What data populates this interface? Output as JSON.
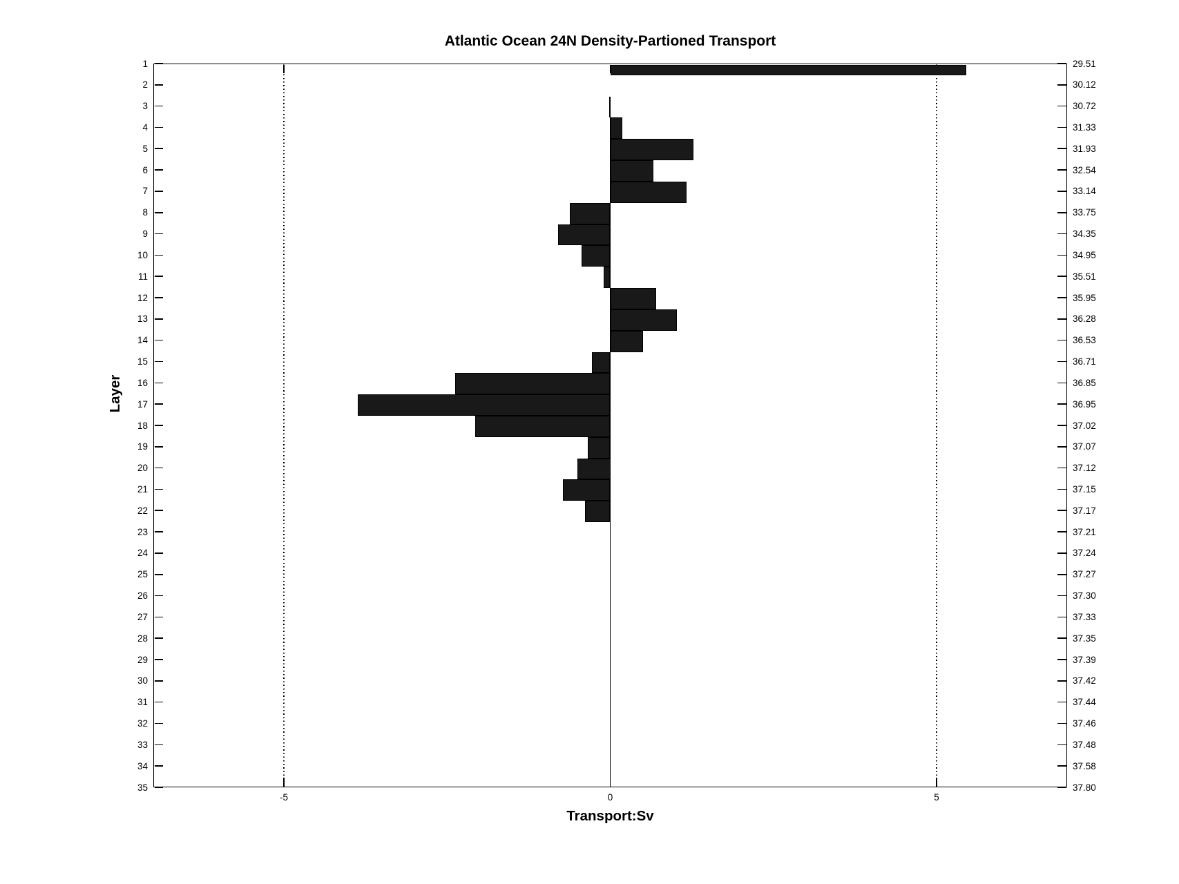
{
  "chart_data": {
    "type": "bar",
    "orientation": "horizontal",
    "title": "Atlantic Ocean 24N Density-Partioned Transport",
    "xlabel": "Transport:Sv",
    "ylabel": "Layer",
    "xlim": [
      -7,
      7
    ],
    "ylim": [
      1,
      35
    ],
    "grid": "dotted-vertical-at-xticks-excluding-zero",
    "bar_color": "#191919",
    "xticks": [
      {
        "value": -5,
        "label": "-5"
      },
      {
        "value": 0,
        "label": "0"
      },
      {
        "value": 5,
        "label": "5"
      }
    ],
    "categories": [
      1,
      2,
      3,
      4,
      5,
      6,
      7,
      8,
      9,
      10,
      11,
      12,
      13,
      14,
      15,
      16,
      17,
      18,
      19,
      20,
      21,
      22,
      23,
      24,
      25,
      26,
      27,
      28,
      29,
      30,
      31,
      32,
      33,
      34,
      35
    ],
    "series": [
      {
        "name": "Transport (Sv)",
        "values": [
          5.46,
          0,
          -0.02,
          0.19,
          1.28,
          0.66,
          1.17,
          -0.62,
          -0.8,
          -0.44,
          -0.1,
          0.7,
          1.02,
          0.5,
          -0.28,
          -2.38,
          -3.87,
          -2.07,
          -0.34,
          -0.5,
          -0.73,
          -0.39,
          0,
          0,
          0,
          0,
          0,
          0,
          0,
          0,
          0,
          0,
          0,
          0,
          0
        ]
      }
    ],
    "right_axis_labels": [
      "29.51",
      "30.12",
      "30.72",
      "31.33",
      "31.93",
      "32.54",
      "33.14",
      "33.75",
      "34.35",
      "34.95",
      "35.51",
      "35.95",
      "36.28",
      "36.53",
      "36.71",
      "36.85",
      "36.95",
      "37.02",
      "37.07",
      "37.12",
      "37.15",
      "37.17",
      "37.21",
      "37.24",
      "37.27",
      "37.30",
      "37.33",
      "37.35",
      "37.39",
      "37.42",
      "37.44",
      "37.46",
      "37.48",
      "37.58",
      "37.80"
    ],
    "legend": null
  }
}
